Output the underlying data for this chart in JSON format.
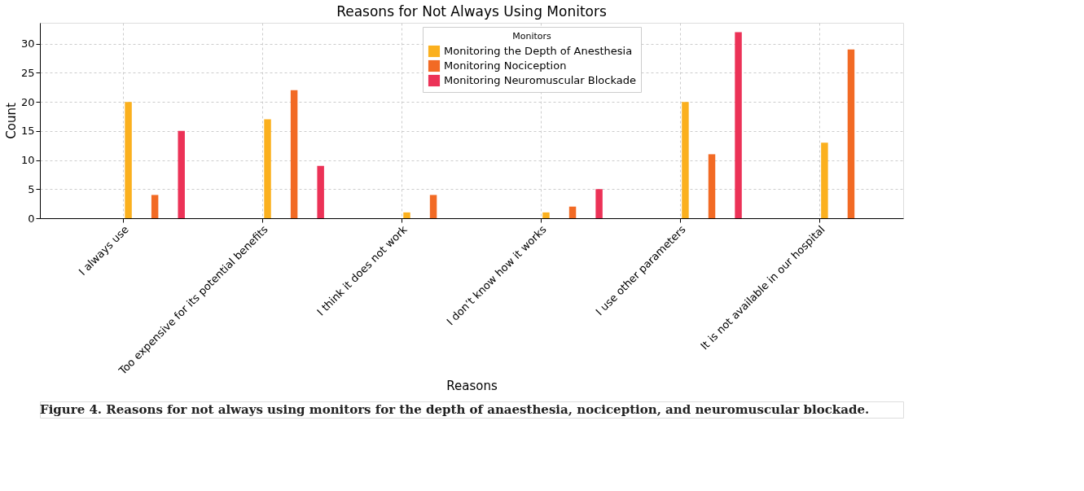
{
  "chart_data": {
    "type": "bar",
    "title": "Reasons for Not Always Using Monitors",
    "xlabel": "Reasons",
    "ylabel": "Count",
    "legend_title": "Monitors",
    "categories": [
      "I always use",
      "Too expensive for its potential benefits",
      "I think it does not work",
      "I don’t know how it works",
      "I use other parameters",
      "It is not available in our hospital"
    ],
    "series": [
      {
        "name": "Monitoring the Depth of Anesthesia",
        "color": "#fbb01e",
        "values": [
          20,
          17,
          1,
          1,
          20,
          13
        ]
      },
      {
        "name": "Monitoring Nociception",
        "color": "#f26a24",
        "values": [
          4,
          22,
          4,
          2,
          11,
          29
        ]
      },
      {
        "name": "Monitoring Neuromuscular Blockade",
        "color": "#ec3257",
        "values": [
          15,
          9,
          0,
          5,
          32,
          0
        ]
      }
    ],
    "ylim": [
      0,
      33.6
    ],
    "yticks": [
      0,
      5,
      10,
      15,
      20,
      25,
      30
    ],
    "grid": true,
    "legend": "top",
    "annotations": [
      "Figure 4. Reasons for not always using monitors for the depth of anaesthesia, nociception, and neuromuscular blockade."
    ]
  }
}
